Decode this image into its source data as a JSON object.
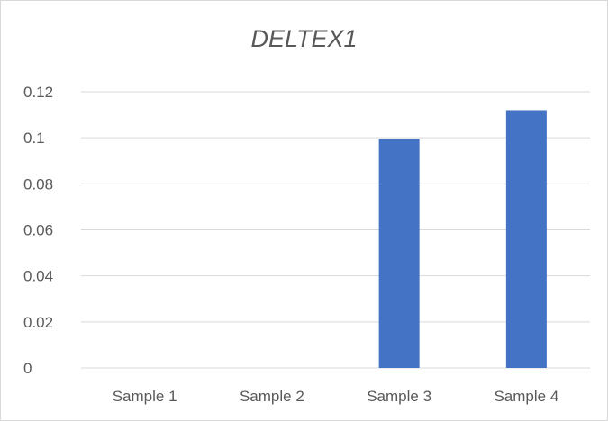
{
  "chart_data": {
    "type": "bar",
    "title": "DELTEX1",
    "xlabel": "",
    "ylabel": "",
    "categories": [
      "Sample 1",
      "Sample 2",
      "Sample 3",
      "Sample 4"
    ],
    "values": [
      0,
      0,
      0.0995,
      0.112
    ],
    "ylim": [
      0,
      0.12
    ],
    "yticks": [
      "0",
      "0.02",
      "0.04",
      "0.06",
      "0.08",
      "0.1",
      "0.12"
    ],
    "grid": true,
    "legend": "none",
    "bar_color": "#4472c4",
    "grid_color": "#d9d9d9",
    "text_color": "#595959"
  }
}
